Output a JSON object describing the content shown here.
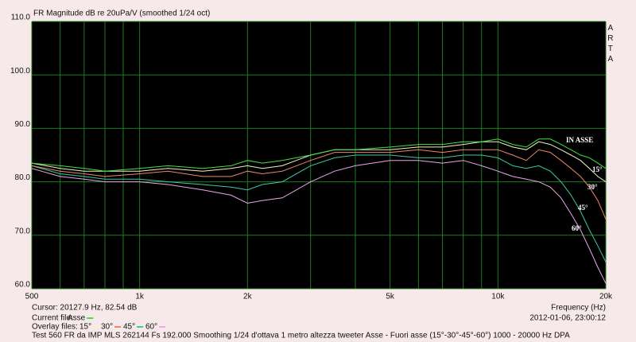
{
  "chart_data": {
    "type": "line",
    "title": "FR Magnitude dB re 20uPa/V (smoothed 1/24 oct)",
    "brand": "ARTA",
    "x_label": "Frequency (Hz)",
    "cursor": "Cursor: 20127.9 Hz, 82.54 dB",
    "timestamp": "2012-01-06, 23:00:12",
    "current_file_label": "Current file:",
    "overlay_files_label": "Overlay files:",
    "footer": "Test 560 FR da IMP MLS 262144 Fs 192.000 Smoothing 1/24 d'ottava 1 metro altezza tweeter Asse - Fuori asse (15°-30°-45°-60°) 1000 - 20000 Hz    DPA",
    "x_log": true,
    "grid": true,
    "xlim": [
      500,
      20000
    ],
    "ylim": [
      60,
      110
    ],
    "xticks": [
      500,
      {
        "value": 1000,
        "label": "1k"
      },
      {
        "value": 2000,
        "label": "2k"
      },
      {
        "value": 5000,
        "label": "5k"
      },
      {
        "value": 10000,
        "label": "10k"
      },
      {
        "value": 20000,
        "label": "20k"
      }
    ],
    "xgrid_minor": [
      600,
      700,
      800,
      900,
      3000,
      4000,
      6000,
      7000,
      8000,
      9000
    ],
    "yticks": [
      {
        "value": 60,
        "label": "60.0"
      },
      {
        "value": 70,
        "label": "70.0"
      },
      {
        "value": 80,
        "label": "80.0"
      },
      {
        "value": 90,
        "label": "90.0"
      },
      {
        "value": 100,
        "label": "100.0"
      },
      {
        "value": 110,
        "label": "110.0"
      }
    ],
    "x": [
      500,
      600,
      700,
      800,
      1000,
      1200,
      1500,
      1800,
      2000,
      2200,
      2500,
      3000,
      3500,
      4000,
      5000,
      6000,
      7000,
      8000,
      9000,
      10000,
      11000,
      12000,
      13000,
      14000,
      15000,
      16000,
      17000,
      18000,
      19000,
      20000
    ],
    "series": [
      {
        "name": "Asse",
        "label": "IN ASSE",
        "color": "#44e044",
        "values": [
          83.5,
          83,
          82.5,
          82,
          82.5,
          83,
          82.5,
          83,
          84,
          83.5,
          84,
          85,
          86,
          86,
          86.5,
          87,
          87,
          87.5,
          87.5,
          88,
          87,
          86.5,
          88,
          88,
          87,
          86,
          85,
          84.5,
          83.5,
          82.5
        ]
      },
      {
        "name": "15°",
        "label": "15°",
        "color": "#f4f0c8",
        "values": [
          83.5,
          82.5,
          82,
          82,
          82,
          82.5,
          82,
          82.5,
          83,
          82.5,
          83,
          85,
          86,
          86,
          86,
          86.5,
          86.5,
          87,
          87.5,
          87.5,
          86.5,
          86,
          87.5,
          87,
          86,
          85,
          84,
          82.5,
          81,
          80
        ]
      },
      {
        "name": "30°",
        "label": "30°",
        "color": "#e88868",
        "values": [
          83,
          82,
          81.5,
          81,
          81.5,
          82,
          81,
          81,
          82,
          81.5,
          82,
          84,
          85.5,
          85.5,
          85.5,
          86,
          85.5,
          86,
          86,
          86,
          85,
          84,
          86,
          85.5,
          84,
          82.5,
          81,
          79,
          76.5,
          73
        ]
      },
      {
        "name": "45°",
        "label": "45°",
        "color": "#40c8a0",
        "values": [
          83,
          81.5,
          81,
          80.5,
          80.5,
          80,
          79.5,
          79,
          78.5,
          79.5,
          80,
          83,
          84.5,
          85,
          85,
          84.5,
          84.5,
          85,
          85,
          84.5,
          83,
          82.5,
          83,
          82,
          80,
          77.5,
          74.5,
          71,
          68,
          65
        ]
      },
      {
        "name": "60°",
        "label": "60°",
        "color": "#e8a8e8",
        "values": [
          82.5,
          81,
          80.5,
          80,
          80,
          79.5,
          78.5,
          77.5,
          76,
          76.5,
          77,
          80,
          82,
          83,
          84,
          84,
          83.5,
          84,
          83,
          82,
          81,
          80.5,
          80,
          79,
          77,
          74,
          71,
          67.5,
          64,
          61
        ]
      }
    ]
  }
}
